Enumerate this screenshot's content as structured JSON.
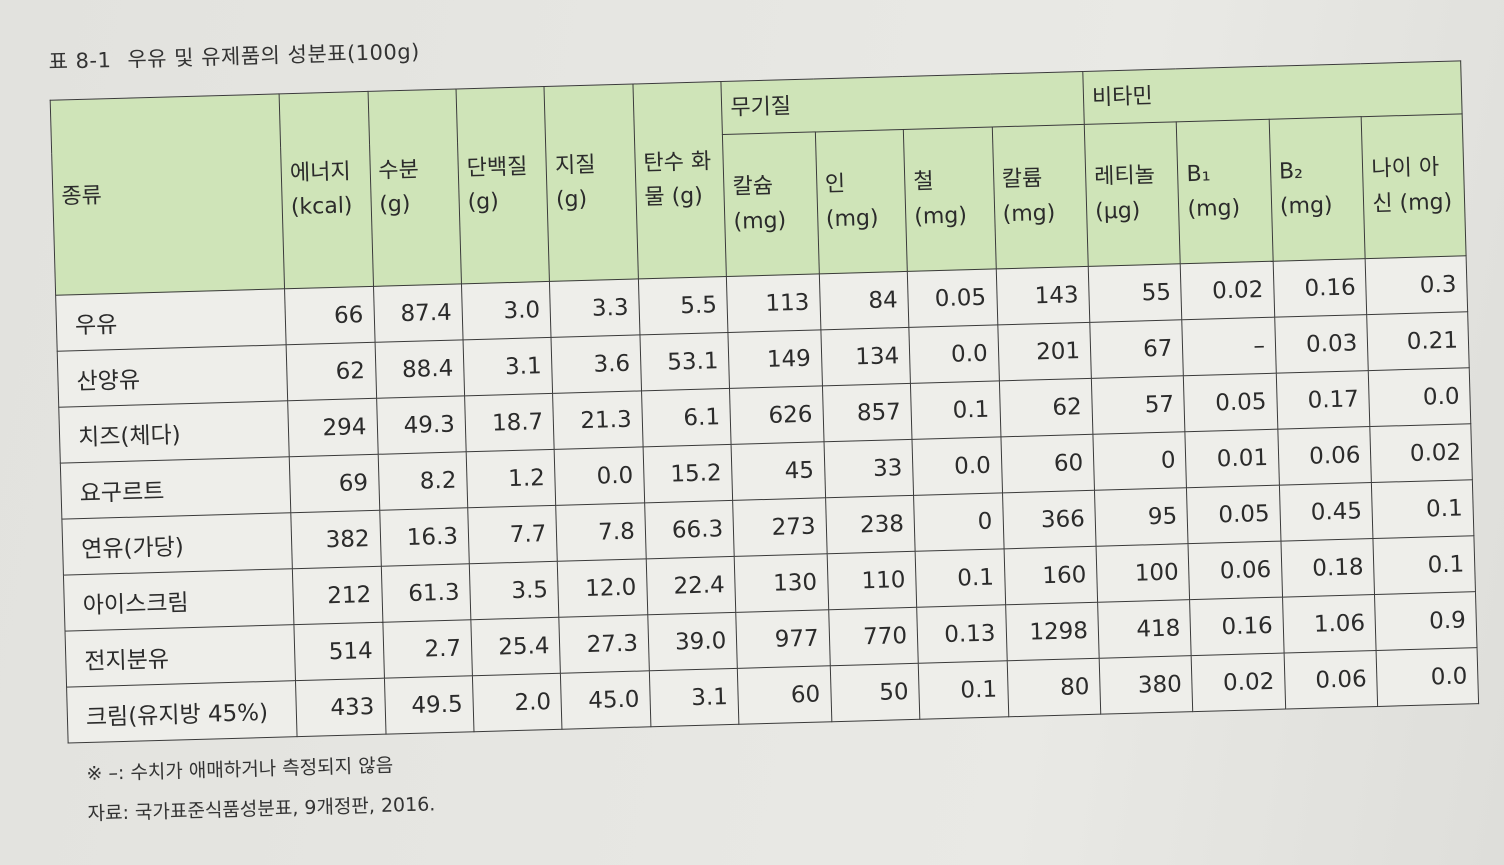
{
  "title": {
    "number": "표 8-1",
    "text": "우유 및 유제품의 성분표(100g)"
  },
  "headers": {
    "type": "종류",
    "energy": "에너지 (kcal)",
    "water": "수분 (g)",
    "protein": "단백질 (g)",
    "fat": "지질 (g)",
    "carb": "탄수 화물 (g)",
    "minerals_group": "무기질",
    "calcium": "칼슘 (mg)",
    "phosphorus": "인 (mg)",
    "iron": "철 (mg)",
    "potassium": "칼륨 (mg)",
    "vitamins_group": "비타민",
    "retinol": "레티놀 (μg)",
    "b1": "B₁ (mg)",
    "b2": "B₂ (mg)",
    "niacin": "나이 아신 (mg)"
  },
  "rows": [
    {
      "name": "우유",
      "cells": [
        "66",
        "87.4",
        "3.0",
        "3.3",
        "5.5",
        "113",
        "84",
        "0.05",
        "143",
        "55",
        "0.02",
        "0.16",
        "0.3"
      ]
    },
    {
      "name": "산양유",
      "cells": [
        "62",
        "88.4",
        "3.1",
        "3.6",
        "53.1",
        "149",
        "134",
        "0.0",
        "201",
        "67",
        "–",
        "0.03",
        "0.21"
      ]
    },
    {
      "name": "치즈(체다)",
      "cells": [
        "294",
        "49.3",
        "18.7",
        "21.3",
        "6.1",
        "626",
        "857",
        "0.1",
        "62",
        "57",
        "0.05",
        "0.17",
        "0.0"
      ]
    },
    {
      "name": "요구르트",
      "cells": [
        "69",
        "8.2",
        "1.2",
        "0.0",
        "15.2",
        "45",
        "33",
        "0.0",
        "60",
        "0",
        "0.01",
        "0.06",
        "0.02"
      ]
    },
    {
      "name": "연유(가당)",
      "cells": [
        "382",
        "16.3",
        "7.7",
        "7.8",
        "66.3",
        "273",
        "238",
        "0",
        "366",
        "95",
        "0.05",
        "0.45",
        "0.1"
      ]
    },
    {
      "name": "아이스크림",
      "cells": [
        "212",
        "61.3",
        "3.5",
        "12.0",
        "22.4",
        "130",
        "110",
        "0.1",
        "160",
        "100",
        "0.06",
        "0.18",
        "0.1"
      ]
    },
    {
      "name": "전지분유",
      "cells": [
        "514",
        "2.7",
        "25.4",
        "27.3",
        "39.0",
        "977",
        "770",
        "0.13",
        "1298",
        "418",
        "0.16",
        "1.06",
        "0.9"
      ]
    },
    {
      "name": "크림(유지방 45%)",
      "cells": [
        "433",
        "49.5",
        "2.0",
        "45.0",
        "3.1",
        "60",
        "50",
        "0.1",
        "80",
        "380",
        "0.02",
        "0.06",
        "0.0"
      ]
    }
  ],
  "notes": {
    "note": "※ –: 수치가 애매하거나 측정되지 않음",
    "source": "자료: 국가표준식품성분표, 9개정판, 2016."
  },
  "colors": {
    "header_bg": "#cfe4b8",
    "body_bg": "#eeeeea",
    "border": "#3a3a3a"
  }
}
